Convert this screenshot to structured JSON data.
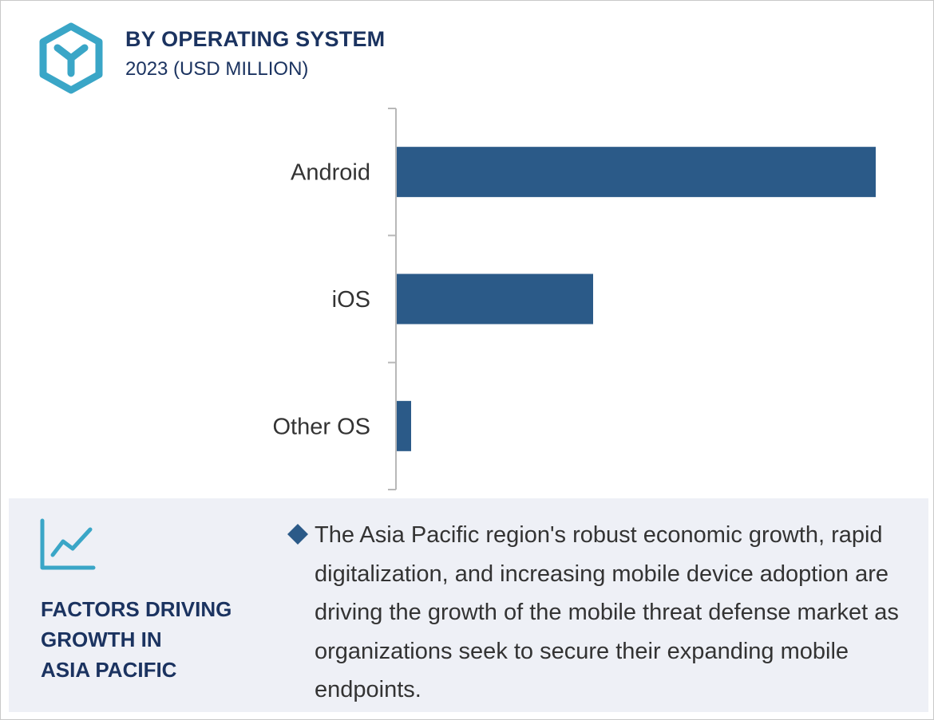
{
  "header": {
    "icon": "y-hexagon-icon",
    "title": "BY OPERATING SYSTEM",
    "subtitle": "2023 (USD MILLION)"
  },
  "chart_data": {
    "type": "bar",
    "orientation": "horizontal",
    "categories": [
      "Android",
      "iOS",
      "Other OS"
    ],
    "values": [
      100,
      41,
      3
    ],
    "xlim": [
      0,
      100
    ],
    "color": "#2b5a88",
    "grid": false,
    "legend": "none",
    "title": "",
    "xlabel": "",
    "ylabel": ""
  },
  "footer": {
    "icon": "line-chart-icon",
    "heading_lines": [
      "FACTORS DRIVING",
      "GROWTH IN",
      "ASIA PACIFIC"
    ],
    "bullet_icon": "diamond-bullet-icon",
    "bullet_text": "The Asia Pacific region's robust economic growth, rapid digitalization, and increasing mobile device adoption are driving the growth of the mobile threat defense market as organizations seek to secure their expanding mobile endpoints."
  },
  "colors": {
    "accent_teal": "#3aa6c7",
    "navy": "#1b3360",
    "bar": "#2b5a88",
    "panel": "#eef0f6"
  }
}
